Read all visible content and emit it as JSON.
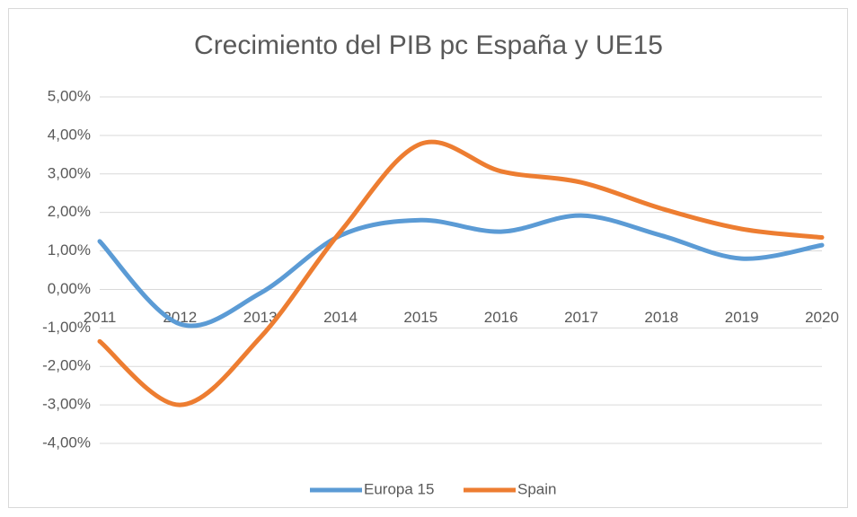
{
  "chart_data": {
    "type": "line",
    "title": "Crecimiento del PIB pc España y UE15",
    "categories": [
      "2011",
      "2012",
      "2013",
      "2014",
      "2015",
      "2016",
      "2017",
      "2018",
      "2019",
      "2020"
    ],
    "series": [
      {
        "name": "Europa 15",
        "color": "#5b9bd5",
        "values": [
          1.25,
          -0.9,
          -0.1,
          1.4,
          1.8,
          1.5,
          1.92,
          1.4,
          0.8,
          1.15
        ]
      },
      {
        "name": "Spain",
        "color": "#ed7d31",
        "values": [
          -1.35,
          -3.0,
          -1.25,
          1.5,
          3.78,
          3.07,
          2.78,
          2.1,
          1.57,
          1.35
        ]
      }
    ],
    "ylim": [
      -4,
      5
    ],
    "yticks": [
      {
        "value": -4,
        "label": "-4,00%"
      },
      {
        "value": -3,
        "label": "-3,00%"
      },
      {
        "value": -2,
        "label": "-2,00%"
      },
      {
        "value": -1,
        "label": "-1,00%"
      },
      {
        "value": 0,
        "label": "0,00%"
      },
      {
        "value": 1,
        "label": "1,00%"
      },
      {
        "value": 2,
        "label": "2,00%"
      },
      {
        "value": 3,
        "label": "3,00%"
      },
      {
        "value": 4,
        "label": "4,00%"
      },
      {
        "value": 5,
        "label": "5,00%"
      }
    ],
    "grid": true,
    "smooth": true,
    "legend": "bottom"
  }
}
